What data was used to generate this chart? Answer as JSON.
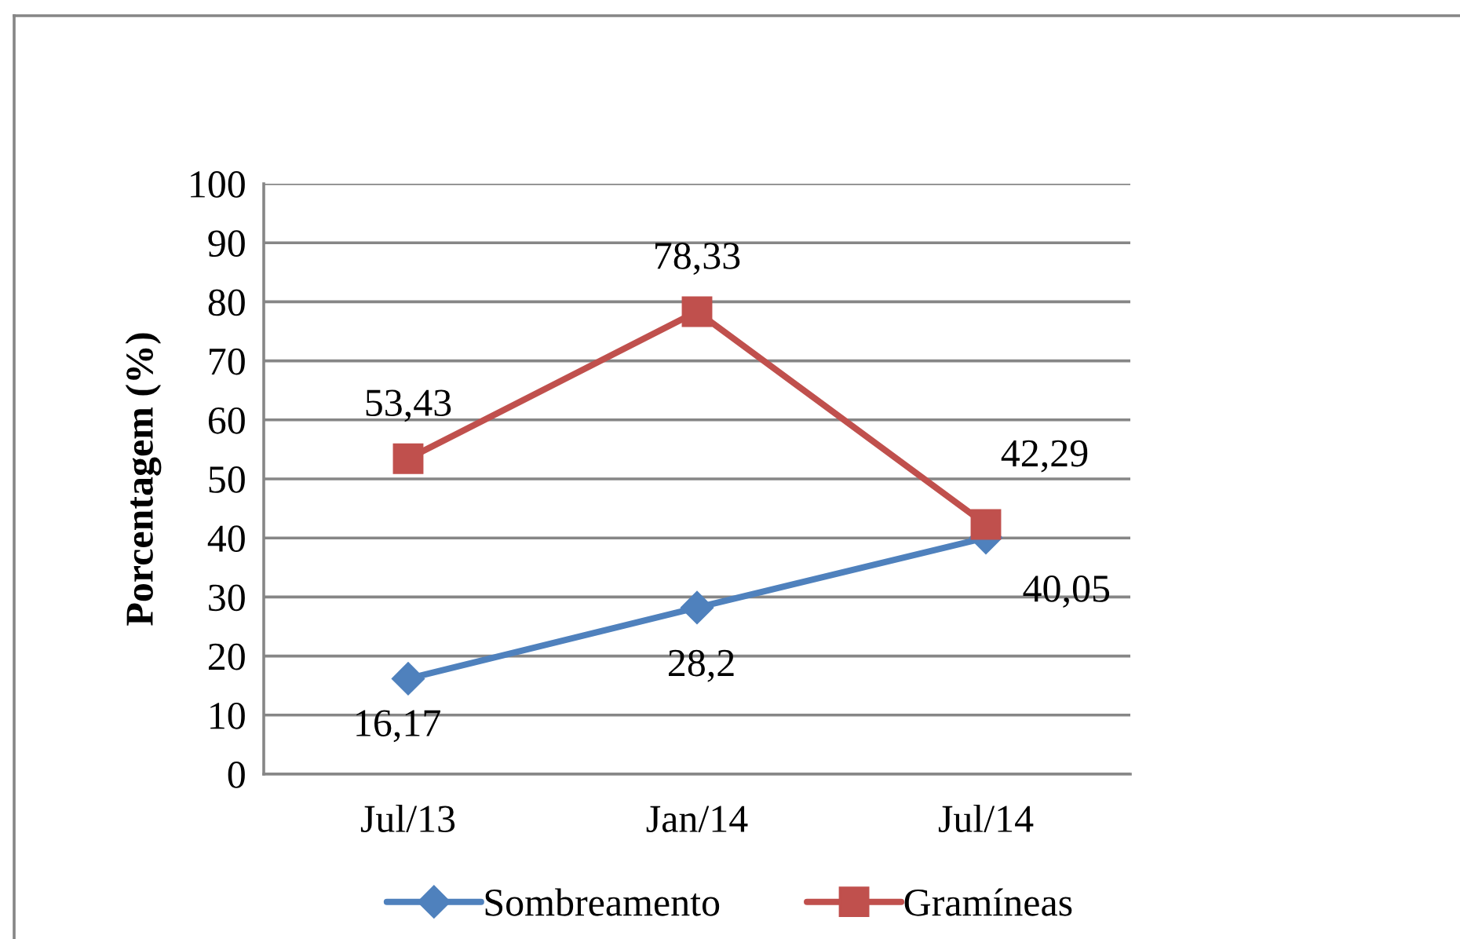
{
  "chart_data": {
    "type": "line",
    "ylabel": "Porcentagem (%)",
    "categories": [
      "Jul/13",
      "Jan/14",
      "Jul/14"
    ],
    "series": [
      {
        "name": "Sombreamento",
        "color": "#4f81bd",
        "marker": "diamond",
        "values": [
          16.17,
          28.2,
          40.05
        ],
        "value_labels": [
          "16,17",
          "28,2",
          "40,05"
        ]
      },
      {
        "name": "Gramíneas",
        "color": "#c0504d",
        "marker": "square",
        "values": [
          53.43,
          78.33,
          42.29
        ],
        "value_labels": [
          "53,43",
          "78,33",
          "42,29"
        ]
      }
    ],
    "ylim": [
      0,
      100
    ],
    "yticks": [
      0,
      10,
      20,
      30,
      40,
      50,
      60,
      70,
      80,
      90,
      100
    ],
    "grid": "y",
    "legend": "bottom",
    "line_style": "solid"
  }
}
